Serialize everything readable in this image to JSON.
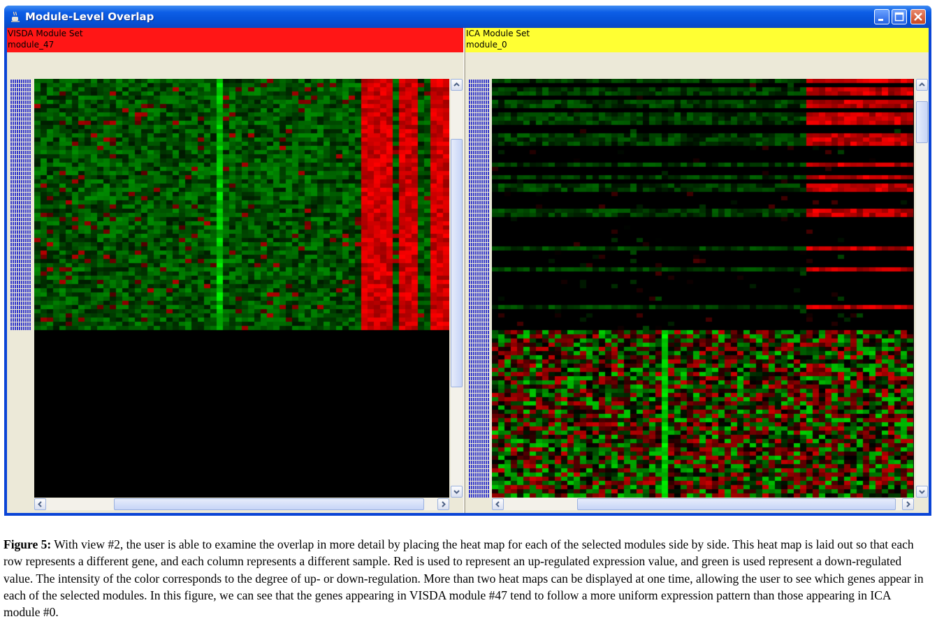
{
  "window": {
    "title": "Module-Level Overlap",
    "icon": "java-coffee-cup-icon",
    "controls": [
      "minimize-icon",
      "maximize-icon",
      "close-icon"
    ]
  },
  "left_pane": {
    "module_set": "VISDA Module Set",
    "module": "module_47",
    "header_color": "#ff1616"
  },
  "right_pane": {
    "module_set": "ICA Module Set",
    "module": "module_0",
    "header_color": "#ffff33"
  },
  "heatmap_colors": {
    "up": "#ff0000",
    "down": "#00ff00",
    "neutral": "#000000"
  },
  "caption": {
    "label": "Figure 5:",
    "text": " With view #2, the user is able to examine the overlap in more detail by placing the heat map for each of the selected modules side by side.  This heat map is laid out so that each row represents a different gene, and each column represents a different sample. Red is used to represent an up-regulated expression value, and green is used represent a down-regulated value. The intensity of the color corresponds to the degree of up- or down-regulation. More than two heat maps can be displayed at one time, allowing the user to see which genes appear in each of the selected modules. In this figure, we can see that the genes appearing in VISDA module #47 tend to follow a more uniform expression pattern than those appearing in ICA module #0."
  }
}
